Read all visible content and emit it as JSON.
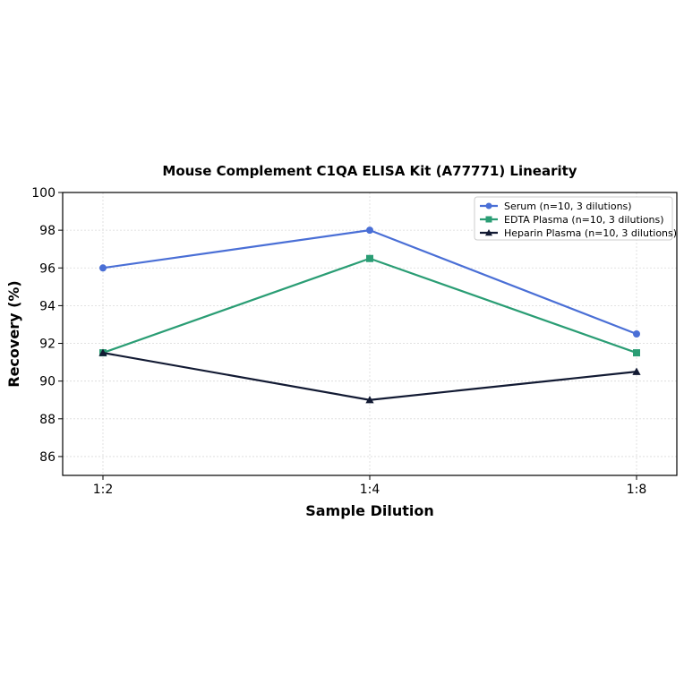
{
  "chart_data": {
    "type": "line",
    "title": "Mouse Complement C1QA ELISA Kit (A77771) Linearity",
    "xlabel": "Sample Dilution",
    "ylabel": "Recovery (%)",
    "categories": [
      "1:2",
      "1:4",
      "1:8"
    ],
    "ylim": [
      85,
      100
    ],
    "yticks": [
      86,
      88,
      90,
      92,
      94,
      96,
      98,
      100
    ],
    "grid": true,
    "legend_position": "top-right",
    "series": [
      {
        "name": "Serum (n=10, 3 dilutions)",
        "values": [
          96,
          98,
          92.5
        ],
        "color": "#4a6fd6",
        "marker": "circle"
      },
      {
        "name": "EDTA Plasma (n=10, 3 dilutions)",
        "values": [
          91.5,
          96.5,
          91.5
        ],
        "color": "#2a9d74",
        "marker": "square"
      },
      {
        "name": "Heparin Plasma (n=10, 3 dilutions)",
        "values": [
          91.5,
          89,
          90.5
        ],
        "color": "#121a33",
        "marker": "triangle"
      }
    ]
  }
}
